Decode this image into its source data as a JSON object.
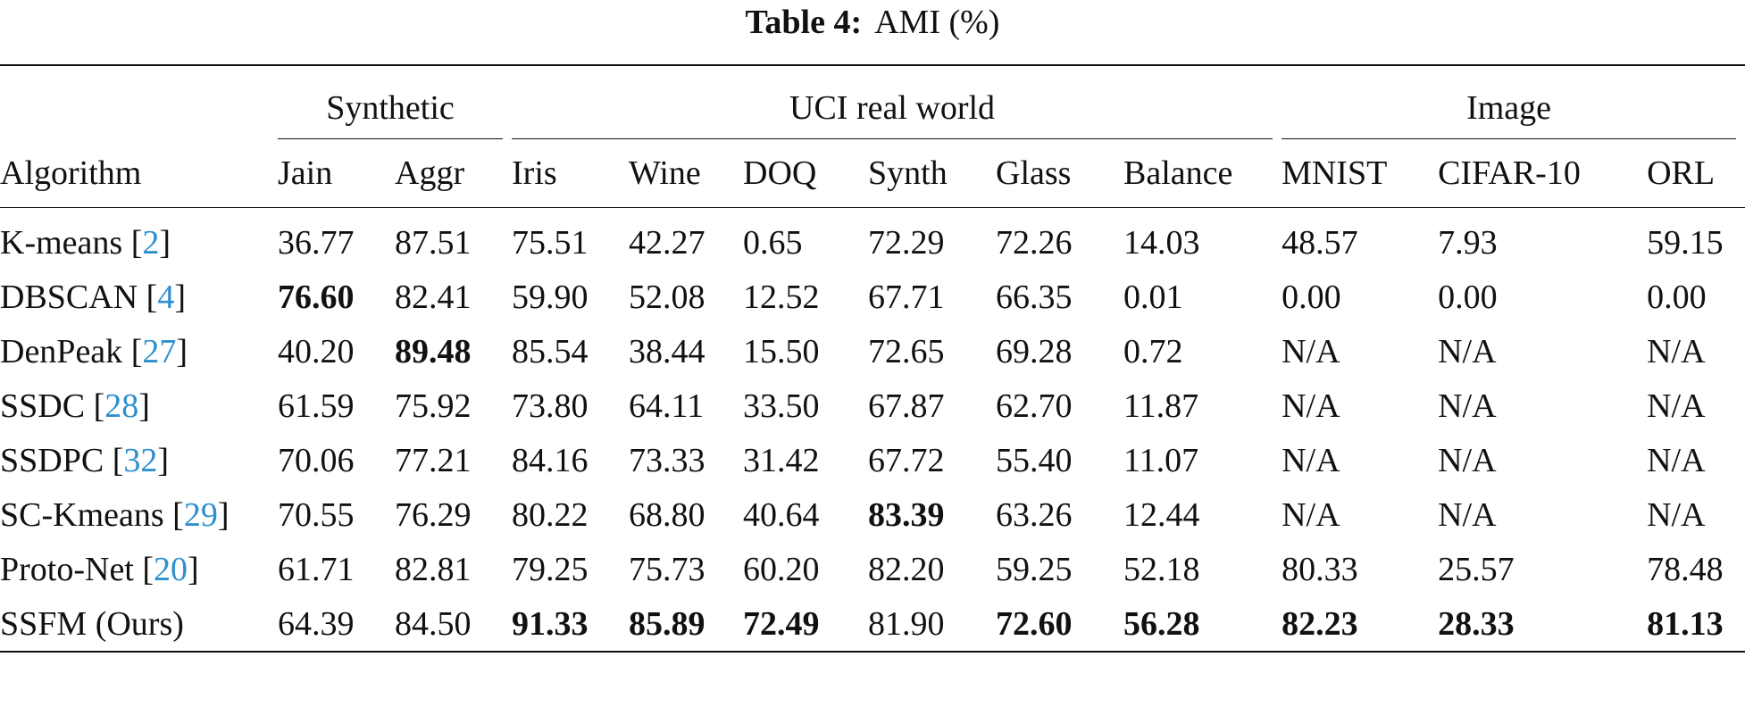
{
  "title": {
    "label": "Table 4:",
    "text": "AMI (%)"
  },
  "table": {
    "groups": [
      {
        "name": "Synthetic",
        "span": 2
      },
      {
        "name": "UCI real world",
        "span": 6
      },
      {
        "name": "Image",
        "span": 3
      }
    ],
    "header": [
      "Algorithm",
      "Jain",
      "Aggr",
      "Iris",
      "Wine",
      "DOQ",
      "Synth",
      "Glass",
      "Balance",
      "MNIST",
      "CIFAR-10",
      "ORL"
    ],
    "rows": [
      {
        "algorithm": "K-means",
        "cite": [
          "[",
          "2",
          "]"
        ],
        "cells": [
          "36.77",
          "87.51",
          "75.51",
          "42.27",
          "0.65",
          "72.29",
          "72.26",
          "14.03",
          "48.57",
          "7.93",
          "59.15"
        ],
        "bold": []
      },
      {
        "algorithm": "DBSCAN",
        "cite": [
          "[",
          "4",
          "]"
        ],
        "cells": [
          "76.60",
          "82.41",
          "59.90",
          "52.08",
          "12.52",
          "67.71",
          "66.35",
          "0.01",
          "0.00",
          "0.00",
          "0.00"
        ],
        "bold": [
          0
        ]
      },
      {
        "algorithm": "DenPeak",
        "cite": [
          "[",
          "27",
          "]"
        ],
        "cells": [
          "40.20",
          "89.48",
          "85.54",
          "38.44",
          "15.50",
          "72.65",
          "69.28",
          "0.72",
          "N/A",
          "N/A",
          "N/A"
        ],
        "bold": [
          1
        ]
      },
      {
        "algorithm": "SSDC",
        "cite": [
          "[",
          "28",
          "]"
        ],
        "cells": [
          "61.59",
          "75.92",
          "73.80",
          "64.11",
          "33.50",
          "67.87",
          "62.70",
          "11.87",
          "N/A",
          "N/A",
          "N/A"
        ],
        "bold": []
      },
      {
        "algorithm": "SSDPC",
        "cite": [
          "[",
          "32",
          "]"
        ],
        "cells": [
          "70.06",
          "77.21",
          "84.16",
          "73.33",
          "31.42",
          "67.72",
          "55.40",
          "11.07",
          "N/A",
          "N/A",
          "N/A"
        ],
        "bold": []
      },
      {
        "algorithm": "SC-Kmeans",
        "cite": [
          "[",
          "29",
          "]"
        ],
        "cells": [
          "70.55",
          "76.29",
          "80.22",
          "68.80",
          "40.64",
          "83.39",
          "63.26",
          "12.44",
          "N/A",
          "N/A",
          "N/A"
        ],
        "bold": [
          5
        ]
      },
      {
        "algorithm": "Proto-Net",
        "cite": [
          "[",
          "20",
          "]"
        ],
        "cells": [
          "61.71",
          "82.81",
          "79.25",
          "75.73",
          "60.20",
          "82.20",
          "59.25",
          "52.18",
          "80.33",
          "25.57",
          "78.48"
        ],
        "bold": []
      },
      {
        "algorithm": "SSFM (Ours)",
        "cite": null,
        "cells": [
          "64.39",
          "84.50",
          "91.33",
          "85.89",
          "72.49",
          "81.90",
          "72.60",
          "56.28",
          "82.23",
          "28.33",
          "81.13"
        ],
        "bold": [
          2,
          3,
          4,
          6,
          7,
          8,
          9,
          10
        ]
      }
    ]
  }
}
